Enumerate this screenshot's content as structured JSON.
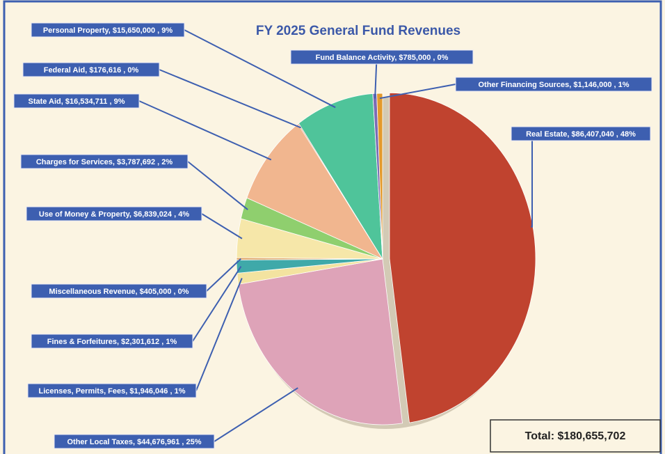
{
  "chart_data": {
    "type": "pie",
    "title": "FY 2025 General Fund Revenues",
    "values": [
      86407040,
      44676961,
      1946046,
      2301612,
      405000,
      6839024,
      3787692,
      16534711,
      176616,
      15650000,
      785000,
      1146000
    ],
    "value_labels": [
      "Real Estate, $86,407,040 , 48%",
      "Other Local Taxes, $44,676,961 , 25%",
      "Licenses, Permits, Fees, $1,946,046 , 1%",
      "Fines & Forfeitures, $2,301,612 , 1%",
      "Miscellaneous Revenue, $405,000 , 0%",
      "Use of Money & Property, $6,839,024 , 4%",
      "Charges for Services, $3,787,692 , 2%",
      "State Aid, $16,534,711 , 9%",
      "Federal Aid, $176,616 , 0%",
      "Personal Property, $15,650,000 , 9%",
      "Fund Balance Activity, $785,000 , 0%",
      "Other Financing Sources, $1,146,000 , 1%"
    ],
    "colors": [
      "#c0432f",
      "#dea3b8",
      "#f3e3a0",
      "#3fa9a9",
      "#e0a86a",
      "#f6e7a9",
      "#8fcf6e",
      "#f1b68f",
      "#c05a30",
      "#4fc49a",
      "#7b6bb5",
      "#e39a2c"
    ],
    "total_label": "Total: $180,655,702"
  }
}
